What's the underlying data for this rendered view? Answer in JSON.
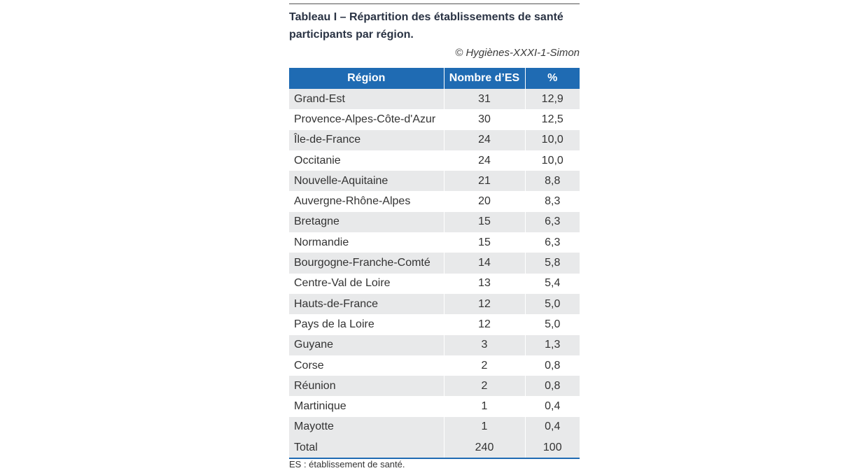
{
  "caption": "Tableau I – Répartition des établissements de santé participants par région.",
  "credit": "© Hygiènes-XXXI-1-Simon",
  "table": {
    "headers": [
      "Région",
      "Nombre d’ES",
      "%"
    ],
    "rows": [
      [
        "Grand-Est",
        "31",
        "12,9"
      ],
      [
        "Provence-Alpes-Côte-d'Azur",
        "30",
        "12,5"
      ],
      [
        "Île-de-France",
        "24",
        "10,0"
      ],
      [
        "Occitanie",
        "24",
        "10,0"
      ],
      [
        "Nouvelle-Aquitaine",
        "21",
        "8,8"
      ],
      [
        "Auvergne-Rhône-Alpes",
        "20",
        "8,3"
      ],
      [
        "Bretagne",
        "15",
        "6,3"
      ],
      [
        "Normandie",
        "15",
        "6,3"
      ],
      [
        "Bourgogne-Franche-Comté",
        "14",
        "5,8"
      ],
      [
        "Centre-Val de Loire",
        "13",
        "5,4"
      ],
      [
        "Hauts-de-France",
        "12",
        "5,0"
      ],
      [
        "Pays de la Loire",
        "12",
        "5,0"
      ],
      [
        "Guyane",
        "3",
        "1,3"
      ],
      [
        "Corse",
        "2",
        "0,8"
      ],
      [
        "Réunion",
        "2",
        "0,8"
      ],
      [
        "Martinique",
        "1",
        "0,4"
      ],
      [
        "Mayotte",
        "1",
        "0,4"
      ]
    ],
    "total": [
      "Total",
      "240",
      "100"
    ]
  },
  "footnote": "ES : établissement de santé.",
  "colors": {
    "header_bg": "#1f6bb3",
    "stripe_bg": "#e8e9ea",
    "caption_text": "#2a3344"
  }
}
